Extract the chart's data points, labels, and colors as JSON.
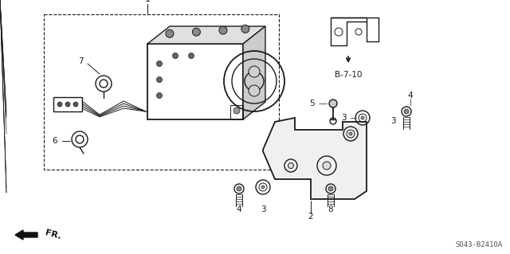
{
  "bg_color": "#ffffff",
  "line_color": "#1a1a1a",
  "diagram_code": "S043-B2410A",
  "figsize": [
    6.4,
    3.19
  ],
  "dpi": 100,
  "xlim": [
    0,
    640
  ],
  "ylim": [
    0,
    319
  ]
}
